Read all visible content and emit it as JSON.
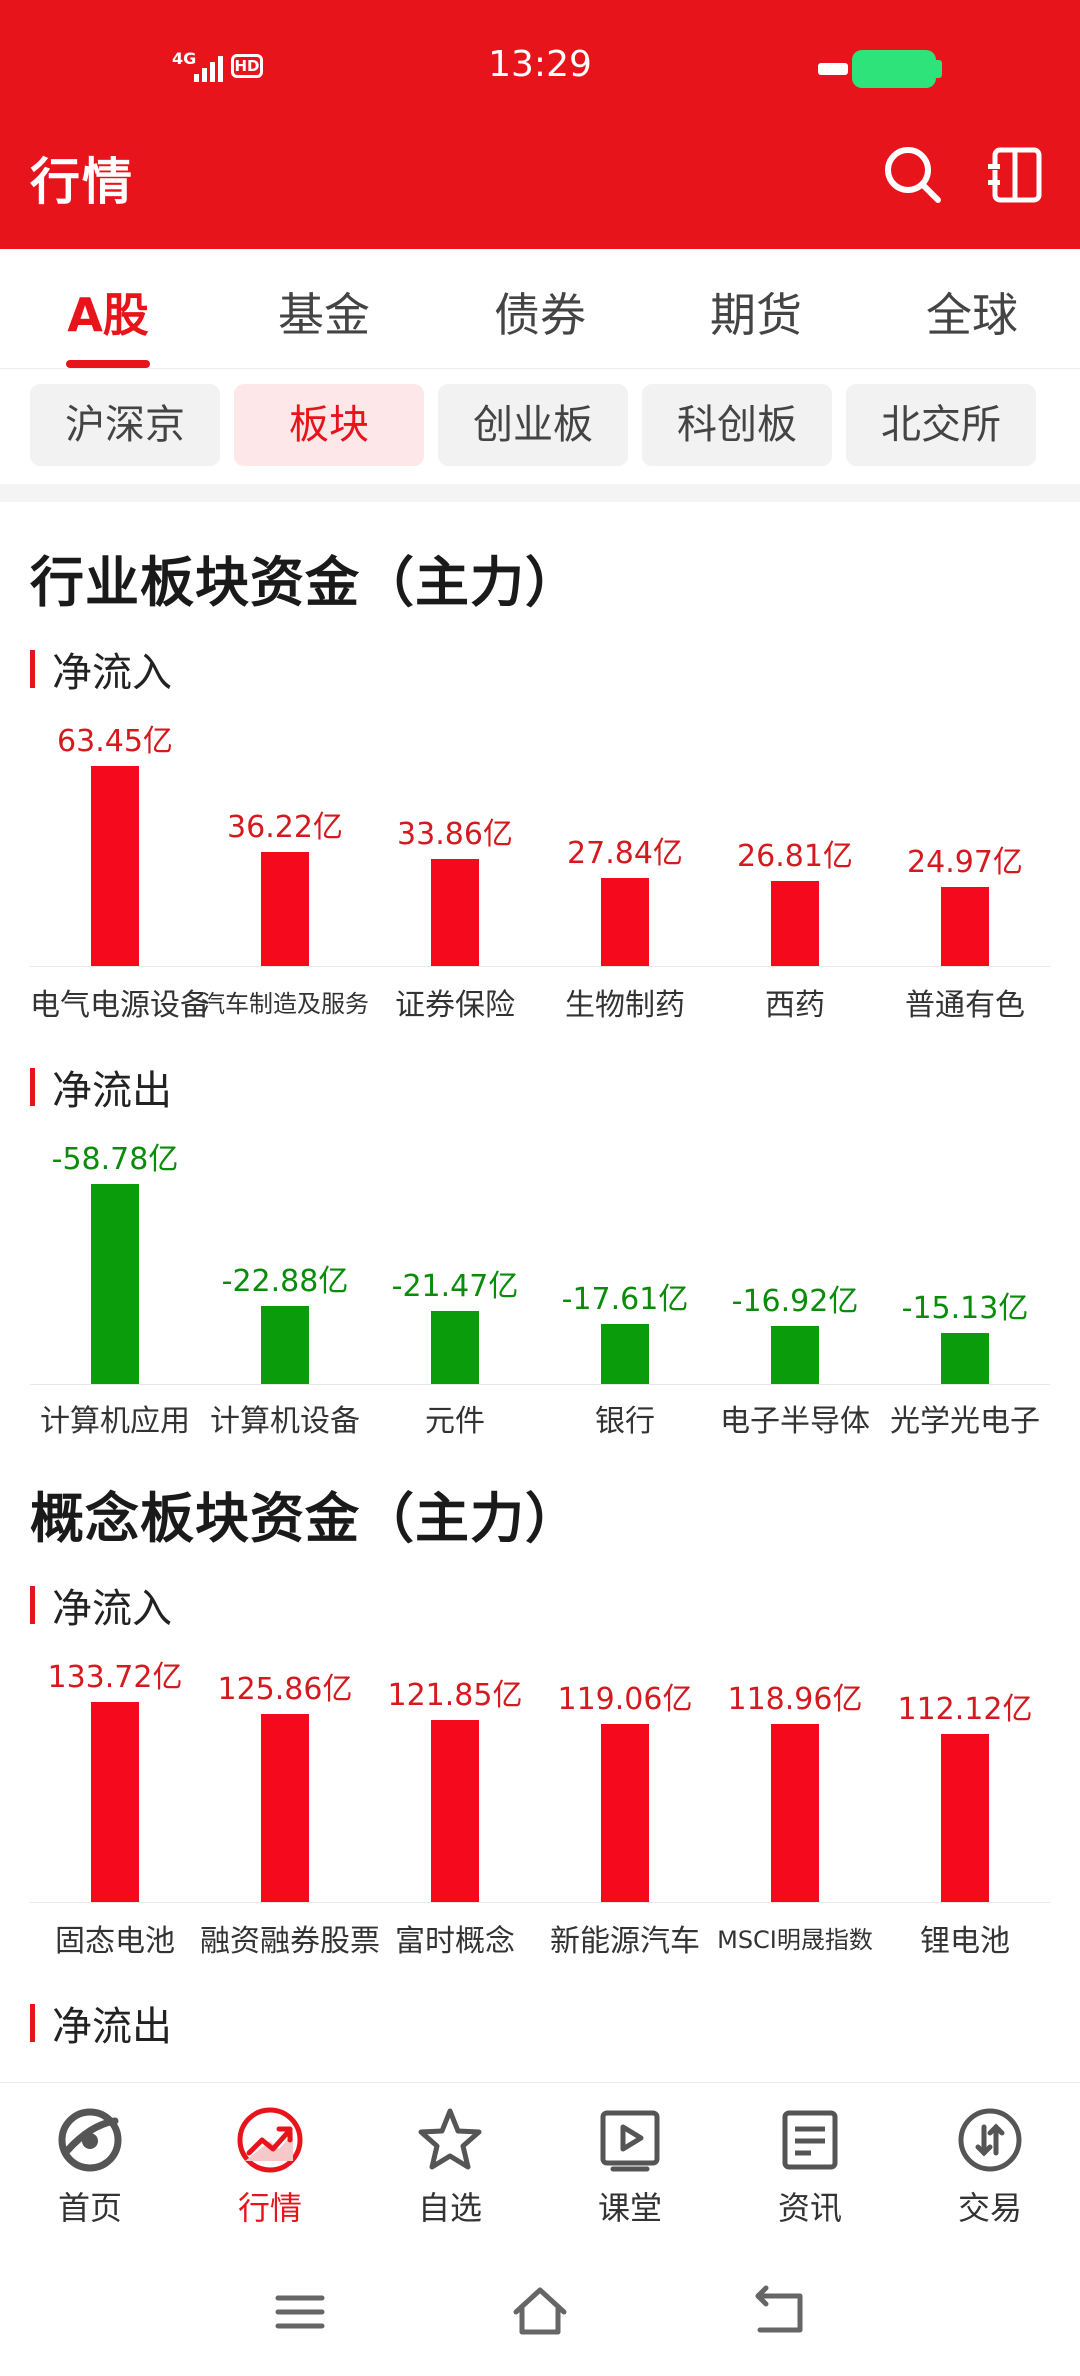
{
  "status": {
    "time": "13:29",
    "network": "4G",
    "hd": "HD"
  },
  "header": {
    "title": "行情"
  },
  "tabs": [
    "A股",
    "基金",
    "债券",
    "期货",
    "全球"
  ],
  "subtabs": [
    "沪深京",
    "板块",
    "创业板",
    "科创板",
    "北交所"
  ],
  "industry": {
    "title": "行业板块资金（主力）",
    "inflow": {
      "label": "净流入",
      "chart_data": {
        "type": "bar",
        "categories": [
          "电气电源设备",
          "汽车制造及服务",
          "证券保险",
          "生物制药",
          "西药",
          "普通有色"
        ],
        "values": [
          63.45,
          36.22,
          33.86,
          27.84,
          26.81,
          24.97
        ],
        "labels": [
          "63.45亿",
          "36.22亿",
          "33.86亿",
          "27.84亿",
          "26.81亿",
          "24.97亿"
        ]
      }
    },
    "outflow": {
      "label": "净流出",
      "chart_data": {
        "type": "bar",
        "categories": [
          "计算机应用",
          "计算机设备",
          "元件",
          "银行",
          "电子半导体",
          "光学光电子"
        ],
        "values": [
          -58.78,
          -22.88,
          -21.47,
          -17.61,
          -16.92,
          -15.13
        ],
        "labels": [
          "-58.78亿",
          "-22.88亿",
          "-21.47亿",
          "-17.61亿",
          "-16.92亿",
          "-15.13亿"
        ]
      }
    }
  },
  "concept": {
    "title": "概念板块资金（主力）",
    "inflow": {
      "label": "净流入",
      "chart_data": {
        "type": "bar",
        "categories": [
          "固态电池",
          "融资融券股票",
          "富时概念",
          "新能源汽车",
          "MSCI明晟指数",
          "锂电池"
        ],
        "values": [
          133.72,
          125.86,
          121.85,
          119.06,
          118.96,
          112.12
        ],
        "labels": [
          "133.72亿",
          "125.86亿",
          "121.85亿",
          "119.06亿",
          "118.96亿",
          "112.12亿"
        ]
      }
    },
    "outflow": {
      "label": "净流出"
    }
  },
  "bottom_nav": [
    "首页",
    "行情",
    "自选",
    "课堂",
    "资讯",
    "交易"
  ],
  "colors": {
    "brand_red": "#e8141c",
    "inflow": "#f5091c",
    "outflow": "#0a9c0a",
    "battery": "#2ee37a"
  }
}
